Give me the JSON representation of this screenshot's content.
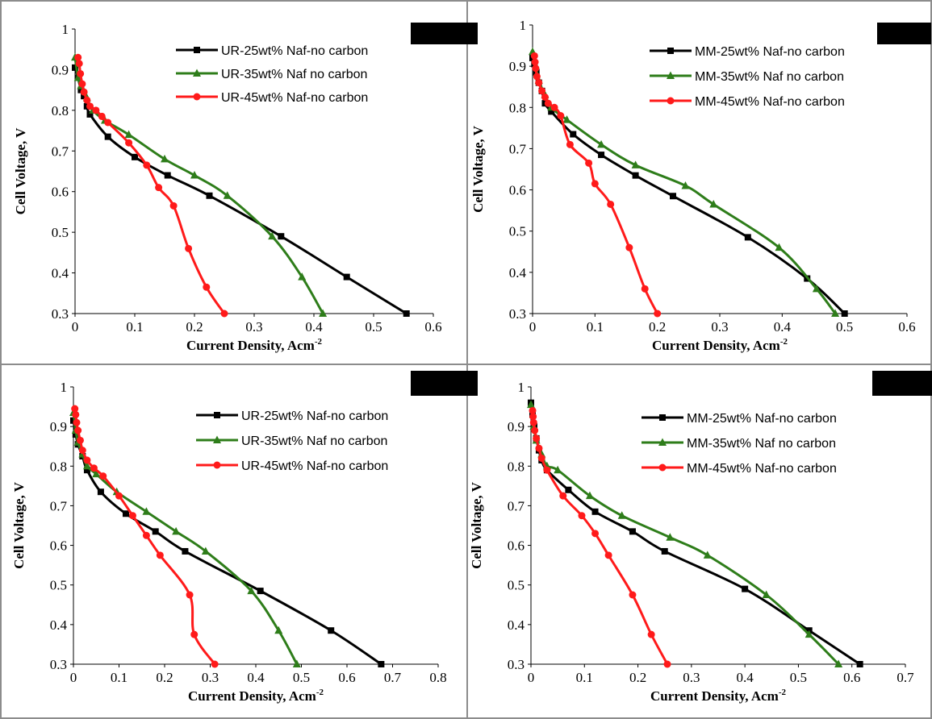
{
  "colors": {
    "series": [
      "#000000",
      "#2e7d1a",
      "#ff1a1a"
    ],
    "frame": "#8c8c8c",
    "redaction": "#000000"
  },
  "markers": [
    "square",
    "triangle",
    "circle"
  ],
  "chart_data": [
    {
      "type": "line",
      "xlabel": "Current Density, Acm",
      "xlabel_sup": "-2",
      "ylabel": "Cell Voltage, V",
      "xlim": [
        0,
        0.6
      ],
      "ylim": [
        0.3,
        1
      ],
      "xticks": [
        "0",
        "0.1",
        "0.2",
        "0.3",
        "0.4",
        "0.5",
        "0.6"
      ],
      "yticks": [
        "0.3",
        "0.4",
        "0.5",
        "0.6",
        "0.7",
        "0.8",
        "0.9",
        "1"
      ],
      "legend_position": "top-right",
      "series": [
        {
          "name": "UR-25wt% Naf-no carbon",
          "x": [
            0.0,
            0.005,
            0.01,
            0.015,
            0.02,
            0.025,
            0.055,
            0.1,
            0.155,
            0.225,
            0.345,
            0.455,
            0.555
          ],
          "y": [
            0.905,
            0.88,
            0.85,
            0.835,
            0.81,
            0.79,
            0.735,
            0.685,
            0.64,
            0.59,
            0.49,
            0.39,
            0.3
          ]
        },
        {
          "name": "UR-35wt% Naf no carbon",
          "x": [
            0.0,
            0.005,
            0.01,
            0.02,
            0.03,
            0.05,
            0.09,
            0.15,
            0.2,
            0.255,
            0.33,
            0.38,
            0.415
          ],
          "y": [
            0.93,
            0.88,
            0.86,
            0.83,
            0.8,
            0.775,
            0.74,
            0.68,
            0.64,
            0.59,
            0.49,
            0.39,
            0.3
          ]
        },
        {
          "name": "UR-45wt% Naf-no carbon",
          "x": [
            0.005,
            0.007,
            0.009,
            0.012,
            0.015,
            0.02,
            0.025,
            0.035,
            0.045,
            0.055,
            0.09,
            0.12,
            0.14,
            0.165,
            0.19,
            0.22,
            0.25
          ],
          "y": [
            0.93,
            0.915,
            0.89,
            0.865,
            0.845,
            0.825,
            0.81,
            0.8,
            0.785,
            0.77,
            0.72,
            0.665,
            0.61,
            0.565,
            0.46,
            0.365,
            0.3
          ]
        }
      ]
    },
    {
      "type": "line",
      "xlabel": "Current Density, Acm",
      "xlabel_sup": "-2",
      "ylabel": "Cell Voltage, V",
      "xlim": [
        0,
        0.6
      ],
      "ylim": [
        0.3,
        1
      ],
      "xticks": [
        "0",
        "0.1",
        "0.2",
        "0.3",
        "0.4",
        "0.5",
        "0.6"
      ],
      "yticks": [
        "0.3",
        "0.4",
        "0.5",
        "0.6",
        "0.7",
        "0.8",
        "0.9",
        "1"
      ],
      "legend_position": "top-right",
      "series": [
        {
          "name": "MM-25wt% Naf-no carbon",
          "x": [
            0.0,
            0.003,
            0.006,
            0.01,
            0.015,
            0.02,
            0.03,
            0.065,
            0.11,
            0.165,
            0.225,
            0.345,
            0.44,
            0.5
          ],
          "y": [
            0.92,
            0.905,
            0.885,
            0.86,
            0.84,
            0.81,
            0.79,
            0.735,
            0.685,
            0.635,
            0.585,
            0.485,
            0.385,
            0.3
          ]
        },
        {
          "name": "MM-35wt% Naf no carbon",
          "x": [
            0.0,
            0.005,
            0.01,
            0.02,
            0.03,
            0.055,
            0.11,
            0.165,
            0.245,
            0.29,
            0.395,
            0.455,
            0.485
          ],
          "y": [
            0.935,
            0.9,
            0.865,
            0.83,
            0.8,
            0.77,
            0.71,
            0.66,
            0.61,
            0.565,
            0.46,
            0.36,
            0.3
          ]
        },
        {
          "name": "MM-45wt% Naf-no carbon",
          "x": [
            0.003,
            0.004,
            0.005,
            0.007,
            0.01,
            0.015,
            0.02,
            0.025,
            0.035,
            0.045,
            0.06,
            0.09,
            0.1,
            0.125,
            0.155,
            0.18,
            0.2
          ],
          "y": [
            0.925,
            0.91,
            0.895,
            0.875,
            0.86,
            0.84,
            0.825,
            0.81,
            0.8,
            0.78,
            0.71,
            0.665,
            0.615,
            0.565,
            0.46,
            0.36,
            0.3
          ]
        }
      ]
    },
    {
      "type": "line",
      "xlabel": "Current Density, Acm",
      "xlabel_sup": "-2",
      "ylabel": "Cell Voltage, V",
      "xlim": [
        0,
        0.8
      ],
      "ylim": [
        0.3,
        1
      ],
      "xticks": [
        "0",
        "0.1",
        "0.2",
        "0.3",
        "0.4",
        "0.5",
        "0.6",
        "0.7",
        "0.8"
      ],
      "yticks": [
        "0.3",
        "0.4",
        "0.5",
        "0.6",
        "0.7",
        "0.8",
        "0.9",
        "1"
      ],
      "legend_position": "top-right",
      "series": [
        {
          "name": "UR-25wt% Naf-no carbon",
          "x": [
            0.0,
            0.005,
            0.01,
            0.02,
            0.03,
            0.06,
            0.115,
            0.18,
            0.245,
            0.41,
            0.565,
            0.675
          ],
          "y": [
            0.915,
            0.88,
            0.855,
            0.825,
            0.79,
            0.735,
            0.68,
            0.635,
            0.585,
            0.485,
            0.385,
            0.3
          ]
        },
        {
          "name": "UR-35wt% Naf no carbon",
          "x": [
            0.0,
            0.005,
            0.01,
            0.02,
            0.03,
            0.05,
            0.095,
            0.16,
            0.225,
            0.29,
            0.39,
            0.45,
            0.49
          ],
          "y": [
            0.935,
            0.89,
            0.86,
            0.83,
            0.8,
            0.78,
            0.735,
            0.685,
            0.635,
            0.585,
            0.485,
            0.385,
            0.3
          ]
        },
        {
          "name": "UR-45wt% Naf-no carbon",
          "x": [
            0.003,
            0.005,
            0.007,
            0.01,
            0.015,
            0.02,
            0.03,
            0.045,
            0.065,
            0.1,
            0.13,
            0.16,
            0.19,
            0.255,
            0.265,
            0.31
          ],
          "y": [
            0.945,
            0.93,
            0.91,
            0.89,
            0.865,
            0.84,
            0.815,
            0.795,
            0.775,
            0.725,
            0.675,
            0.625,
            0.575,
            0.475,
            0.375,
            0.3
          ]
        }
      ]
    },
    {
      "type": "line",
      "xlabel": "Current Density, Acm",
      "xlabel_sup": "-2",
      "ylabel": "Cell Voltage, V",
      "xlim": [
        0,
        0.7
      ],
      "ylim": [
        0.3,
        1
      ],
      "xticks": [
        "0",
        "0.1",
        "0.2",
        "0.3",
        "0.4",
        "0.5",
        "0.6",
        "0.7"
      ],
      "yticks": [
        "0.3",
        "0.4",
        "0.5",
        "0.6",
        "0.7",
        "0.8",
        "0.9",
        "1"
      ],
      "legend_position": "top-right",
      "series": [
        {
          "name": "MM-25wt% Naf-no carbon",
          "x": [
            0.0,
            0.003,
            0.006,
            0.01,
            0.015,
            0.02,
            0.03,
            0.07,
            0.12,
            0.19,
            0.25,
            0.4,
            0.52,
            0.615
          ],
          "y": [
            0.96,
            0.93,
            0.9,
            0.87,
            0.84,
            0.815,
            0.79,
            0.74,
            0.685,
            0.635,
            0.585,
            0.49,
            0.385,
            0.3
          ]
        },
        {
          "name": "MM-35wt% Naf no carbon",
          "x": [
            0.0,
            0.005,
            0.01,
            0.02,
            0.03,
            0.05,
            0.11,
            0.17,
            0.26,
            0.33,
            0.44,
            0.52,
            0.575
          ],
          "y": [
            0.955,
            0.9,
            0.865,
            0.83,
            0.8,
            0.79,
            0.725,
            0.675,
            0.62,
            0.575,
            0.475,
            0.375,
            0.3
          ]
        },
        {
          "name": "MM-45wt% Naf-no carbon",
          "x": [
            0.003,
            0.004,
            0.005,
            0.007,
            0.01,
            0.015,
            0.02,
            0.03,
            0.06,
            0.095,
            0.12,
            0.145,
            0.19,
            0.225,
            0.255
          ],
          "y": [
            0.94,
            0.925,
            0.91,
            0.89,
            0.87,
            0.845,
            0.82,
            0.79,
            0.725,
            0.675,
            0.63,
            0.575,
            0.475,
            0.375,
            0.3
          ]
        }
      ]
    }
  ]
}
